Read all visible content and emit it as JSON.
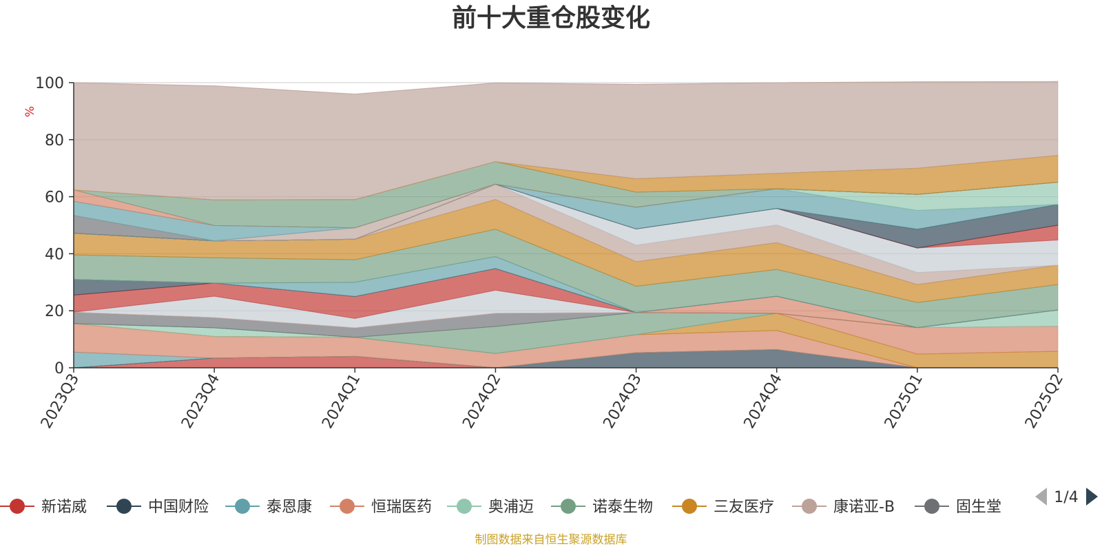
{
  "chart_data": {
    "type": "area",
    "title": "前十大重仓股变化",
    "y_unit": "%",
    "ylim": [
      0,
      100
    ],
    "y_ticks": [
      "0",
      "20",
      "40",
      "60",
      "80",
      "100"
    ],
    "categories": [
      "2023Q3",
      "2023Q4",
      "2024Q1",
      "2024Q2",
      "2024Q3",
      "2024Q4",
      "2025Q1",
      "2025Q2"
    ],
    "grid": true,
    "legend_position": "bottom",
    "source": "制图数据来自恒生聚源数据库",
    "legend_page": "1/4",
    "layers": [
      {
        "name": "新诺威",
        "color": "#c23531",
        "values": [
          0.0,
          3.4,
          4.0,
          0.0,
          0.0,
          0.0,
          0.0,
          0.0
        ]
      },
      {
        "name": "中国财险",
        "color": "#2f4554",
        "values": [
          0.0,
          0.0,
          0.0,
          0.0,
          5.3,
          6.4,
          0.0,
          0.0
        ]
      },
      {
        "color": "#61a0a8",
        "values": [
          5.5,
          0.0,
          0.0,
          0.0,
          0.0,
          0.0,
          0.0,
          0.0
        ]
      },
      {
        "name": "恒瑞医药",
        "color": "#d48265",
        "values": [
          10.0,
          7.6,
          6.7,
          5.0,
          6.3,
          6.7,
          0.0,
          0.0
        ]
      },
      {
        "name": "三友医疗",
        "color": "#ca8622",
        "values": [
          0.0,
          0.0,
          0.0,
          0.0,
          0.0,
          6.0,
          4.8,
          5.8
        ]
      },
      {
        "name": "恒瑞医药",
        "color": "#d48265",
        "values": [
          0.0,
          0.0,
          0.0,
          0.0,
          0.0,
          0.0,
          9.3,
          8.8
        ]
      },
      {
        "name": "奥浦迈",
        "color": "#91c7ae",
        "values": [
          0.0,
          3.0,
          0.0,
          0.0,
          0.0,
          0.0,
          0.0,
          5.7
        ]
      },
      {
        "name": "诺泰生物",
        "color": "#749f83",
        "values": [
          0.0,
          0.0,
          0.0,
          9.5,
          7.8,
          0.0,
          0.0,
          0.0
        ]
      },
      {
        "color": "#6e7074",
        "values": [
          4.0,
          3.6,
          3.3,
          4.6,
          0.0,
          0.0,
          0.0,
          0.0
        ]
      },
      {
        "name": "恒瑞医药",
        "color": "#d48265",
        "values": [
          0.0,
          0.0,
          0.0,
          0.0,
          0.0,
          6.0,
          0.0,
          0.0
        ]
      },
      {
        "color": "#c4ccd3",
        "values": [
          0.0,
          7.5,
          3.3,
          8.1,
          0.0,
          0.0,
          0.0,
          0.0
        ]
      },
      {
        "name": "新诺威",
        "color": "#c23531",
        "values": [
          6.0,
          4.6,
          7.7,
          7.6,
          0.0,
          0.0,
          0.0,
          0.0
        ]
      },
      {
        "name": "中国财险",
        "color": "#2f4554",
        "values": [
          5.5,
          0.0,
          0.0,
          0.0,
          0.0,
          0.0,
          0.0,
          0.0
        ]
      },
      {
        "name": "泰恩康",
        "color": "#61a0a8",
        "values": [
          0.0,
          0.0,
          5.0,
          4.2,
          0.0,
          0.0,
          0.0,
          0.0
        ]
      },
      {
        "name": "诺泰生物",
        "color": "#749f83",
        "values": [
          8.6,
          8.9,
          7.9,
          9.6,
          9.2,
          9.4,
          8.8,
          8.9
        ]
      },
      {
        "name": "三友医疗",
        "color": "#ca8622",
        "values": [
          7.6,
          5.9,
          7.2,
          10.4,
          8.6,
          9.4,
          6.3,
          6.8
        ]
      },
      {
        "name": "康诺亚-B",
        "color": "#bda29a",
        "values": [
          0.0,
          0.0,
          0.0,
          5.4,
          5.8,
          6.2,
          4.2,
          0.0
        ]
      },
      {
        "color": "#c4ccd3",
        "values": [
          0.0,
          0.0,
          0.0,
          0.0,
          5.7,
          5.8,
          8.6,
          8.8
        ]
      },
      {
        "name": "新诺威",
        "color": "#c23531",
        "values": [
          0.0,
          0.0,
          0.0,
          0.0,
          0.0,
          0.0,
          0.0,
          5.2
        ]
      },
      {
        "name": "中国财险",
        "color": "#2f4554",
        "values": [
          0.0,
          0.0,
          0.0,
          0.0,
          0.0,
          0.0,
          6.6,
          7.3
        ]
      },
      {
        "name": "泰恩康",
        "color": "#61a0a8",
        "values": [
          0.0,
          0.0,
          0.0,
          0.0,
          7.6,
          6.9,
          6.6,
          0.0
        ]
      },
      {
        "name": "奥浦迈",
        "color": "#91c7ae",
        "values": [
          0.0,
          0.0,
          0.0,
          0.0,
          0.0,
          0.0,
          5.6,
          7.8
        ]
      },
      {
        "color": "#6e7074",
        "values": [
          6.2,
          0.0,
          0.0,
          0.0,
          0.0,
          0.0,
          0.0,
          0.0
        ]
      },
      {
        "name": "康诺亚-B",
        "color": "#bda29a",
        "values": [
          0.0,
          0.0,
          4.0,
          0.0,
          0.0,
          0.0,
          0.0,
          0.0
        ]
      },
      {
        "name": "泰恩康",
        "color": "#61a0a8",
        "values": [
          5.0,
          5.4,
          0.0,
          0.0,
          0.0,
          0.0,
          0.0,
          0.0
        ]
      },
      {
        "name": "恒瑞医药",
        "color": "#d48265",
        "values": [
          4.0,
          0.0,
          0.0,
          0.0,
          0.0,
          0.0,
          0.0,
          0.0
        ]
      },
      {
        "name": "诺泰生物",
        "color": "#749f83",
        "values": [
          0.0,
          9.0,
          9.9,
          7.9,
          5.3,
          0.0,
          0.0,
          0.0
        ]
      },
      {
        "name": "三友医疗",
        "color": "#ca8622",
        "values": [
          0.0,
          0.0,
          0.0,
          0.0,
          4.7,
          5.4,
          9.2,
          9.4
        ]
      },
      {
        "name": "康诺亚-B",
        "color": "#bda29a",
        "values": [
          37.6,
          40.0,
          37.0,
          27.6,
          33.1,
          31.8,
          30.3,
          25.9
        ]
      }
    ],
    "legend_items": [
      {
        "label": "新诺威",
        "color": "#c23531"
      },
      {
        "label": "中国财险",
        "color": "#2f4554"
      },
      {
        "label": "泰恩康",
        "color": "#61a0a8"
      },
      {
        "label": "恒瑞医药",
        "color": "#d48265"
      },
      {
        "label": "奥浦迈",
        "color": "#91c7ae"
      },
      {
        "label": "诺泰生物",
        "color": "#749f83"
      },
      {
        "label": "三友医疗",
        "color": "#ca8622"
      },
      {
        "label": "康诺亚-B",
        "color": "#bda29a"
      },
      {
        "label": "固生堂",
        "color": "#6e7074"
      }
    ],
    "colors": {
      "text": "#333333",
      "axis": "#333333",
      "grid": "#cccccc",
      "unit": "#e02020",
      "source": "#c9a227",
      "pager_active": "#2f4554",
      "pager_inactive": "#aaaaaa"
    }
  }
}
